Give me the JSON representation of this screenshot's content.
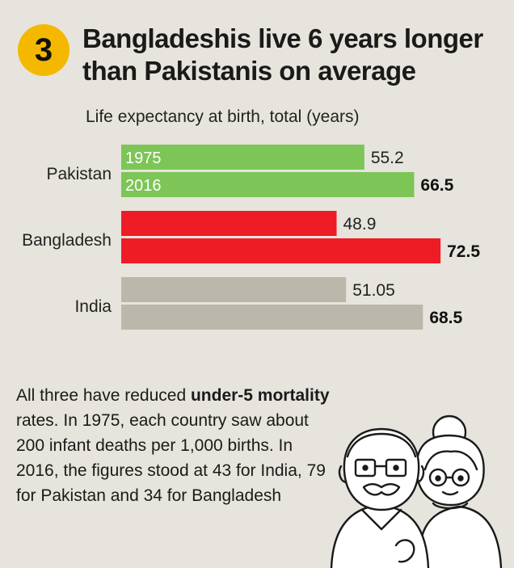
{
  "badge": {
    "number": "3"
  },
  "headline": {
    "line1": "Bangladeshis live 6 years longer",
    "line2": "than Pakistanis on average"
  },
  "chart_data": {
    "type": "bar",
    "orientation": "horizontal",
    "title": "",
    "subtitle": "Life expectancy at birth, total (years)",
    "categories": [
      "Pakistan",
      "Bangladesh",
      "India"
    ],
    "series": [
      {
        "name": "1975",
        "values": [
          55.2,
          48.9,
          51.05
        ],
        "value_labels": [
          "55.2",
          "48.9",
          "51.05"
        ]
      },
      {
        "name": "2016",
        "values": [
          66.5,
          72.5,
          68.5
        ],
        "value_labels": [
          "66.5",
          "72.5",
          "68.5"
        ]
      }
    ],
    "colors": {
      "Pakistan": "#7cc556",
      "Bangladesh": "#ee1c25",
      "India": "#bab7ab"
    },
    "bar_text_labels": [
      "1975",
      "2016"
    ],
    "xlim": [
      0,
      72.5
    ],
    "grid": false,
    "legend": "none"
  },
  "note": {
    "part1": "All three have reduced ",
    "bold": "under-5 mortality",
    "part2": " rates. In 1975, each country saw about 200 infant deaths per 1,000 births. In 2016, the figures stood at 43 for India, 79 for Pakistan and 34 for Bangladesh"
  },
  "illustration": {
    "icon": "elderly-couple-icon"
  }
}
